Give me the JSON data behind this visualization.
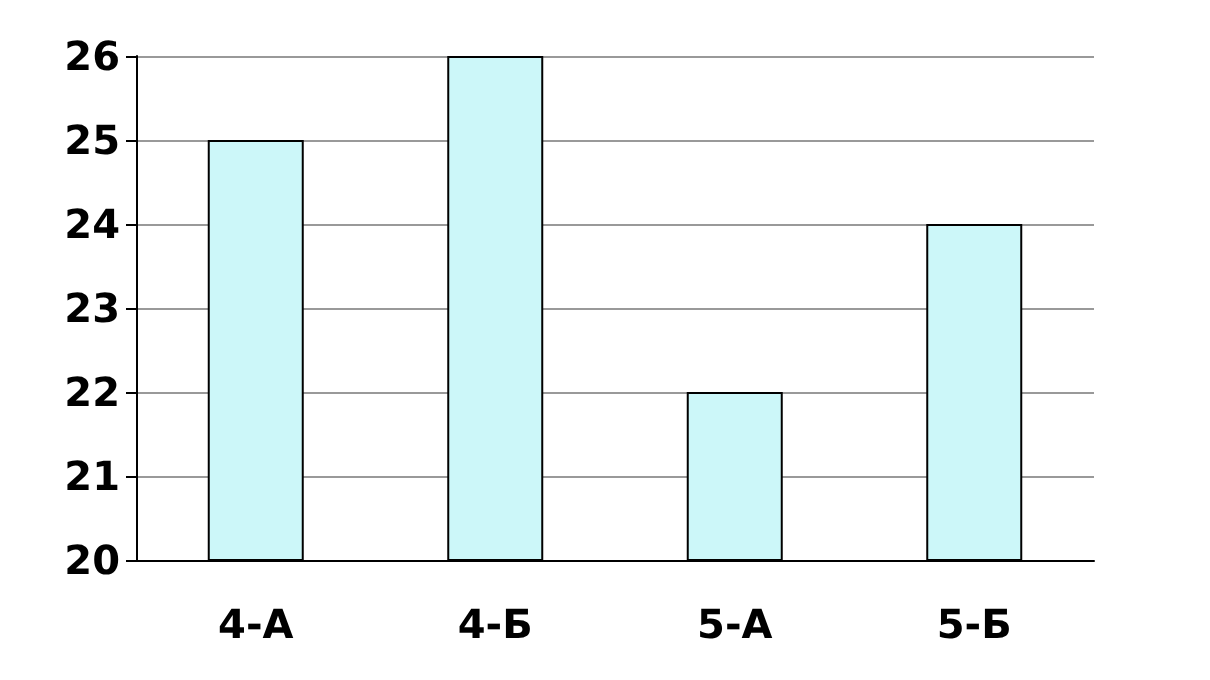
{
  "chart_data": {
    "type": "bar",
    "categories": [
      "4-А",
      "4-Б",
      "5-А",
      "5-Б"
    ],
    "values": [
      25,
      26,
      22,
      24
    ],
    "color": "#ccf7f9",
    "ylim": [
      20,
      26
    ],
    "yticks": [
      20,
      21,
      22,
      23,
      24,
      25,
      26
    ],
    "grid": "y"
  }
}
